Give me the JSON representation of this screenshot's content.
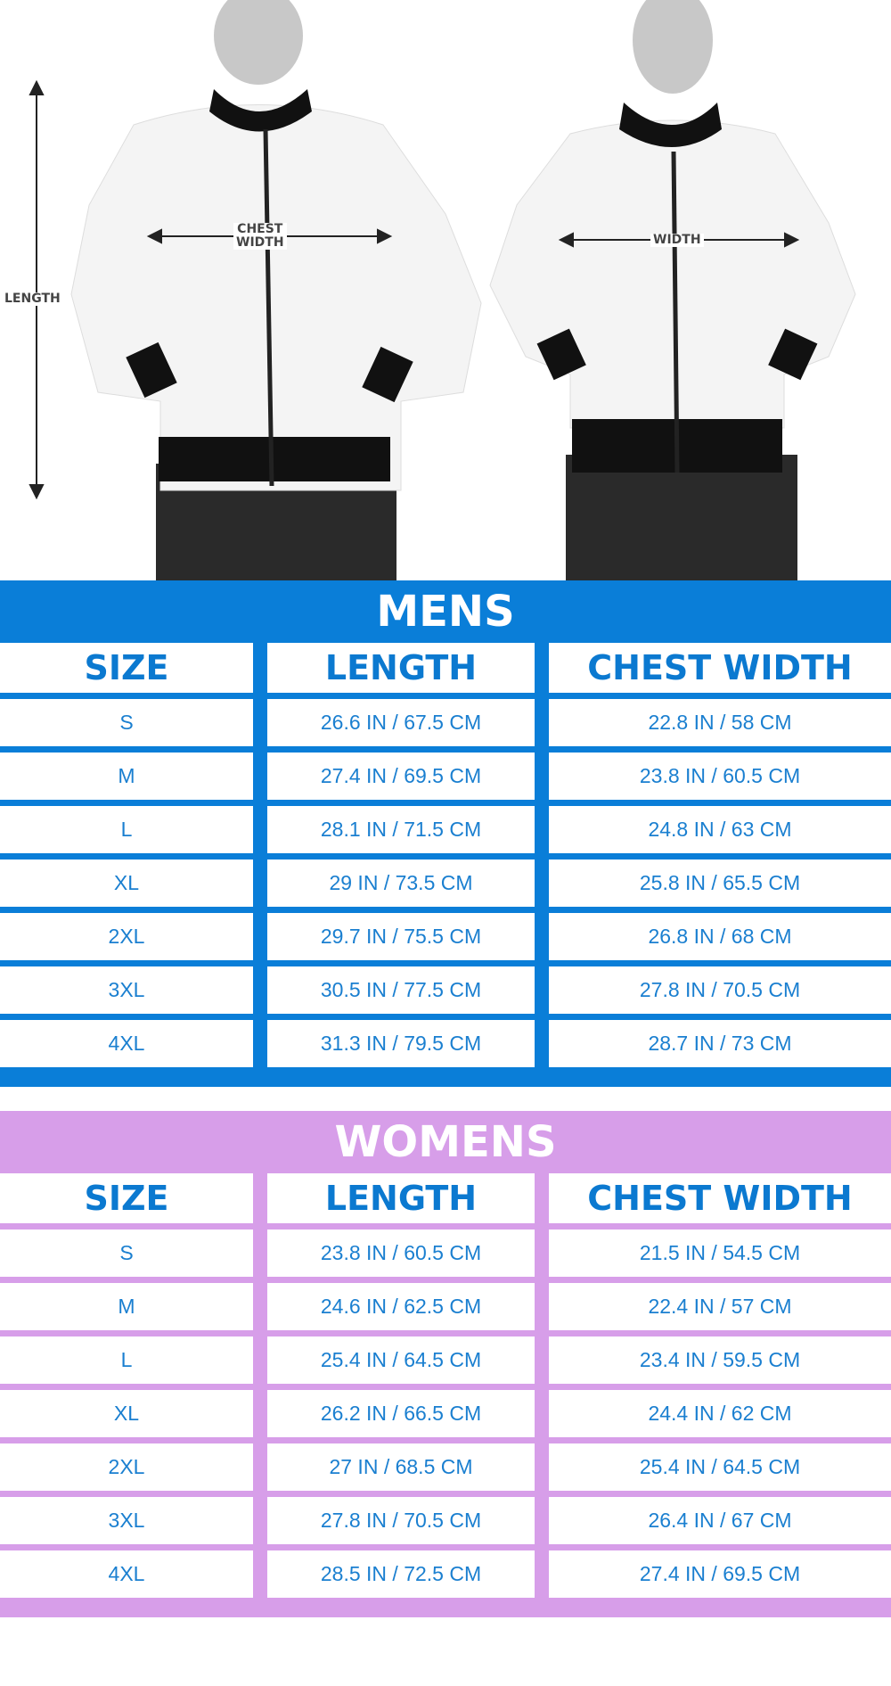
{
  "colors": {
    "mens": "#0a7ed8",
    "womens": "#d79ee9",
    "text": "#1a7fd0"
  },
  "photo": {
    "labels": {
      "length": "LENGTH",
      "chest_width": "CHEST\nWIDTH",
      "width": "WIDTH"
    }
  },
  "mens": {
    "title": "MENS",
    "headers": [
      "SIZE",
      "LENGTH",
      "CHEST WIDTH"
    ],
    "rows": [
      [
        "S",
        "26.6 IN / 67.5 CM",
        "22.8 IN / 58 CM"
      ],
      [
        "M",
        "27.4 IN / 69.5 CM",
        "23.8 IN / 60.5 CM"
      ],
      [
        "L",
        "28.1 IN / 71.5 CM",
        "24.8 IN / 63 CM"
      ],
      [
        "XL",
        "29 IN / 73.5 CM",
        "25.8 IN / 65.5 CM"
      ],
      [
        "2XL",
        "29.7 IN / 75.5 CM",
        "26.8 IN / 68 CM"
      ],
      [
        "3XL",
        "30.5 IN / 77.5 CM",
        "27.8 IN / 70.5 CM"
      ],
      [
        "4XL",
        "31.3 IN / 79.5 CM",
        "28.7 IN / 73 CM"
      ]
    ]
  },
  "womens": {
    "title": "WOMENS",
    "headers": [
      "SIZE",
      "LENGTH",
      "CHEST WIDTH"
    ],
    "rows": [
      [
        "S",
        "23.8 IN / 60.5 CM",
        "21.5 IN / 54.5 CM"
      ],
      [
        "M",
        "24.6 IN / 62.5 CM",
        "22.4 IN /  57 CM"
      ],
      [
        "L",
        "25.4 IN / 64.5 CM",
        "23.4 IN / 59.5 CM"
      ],
      [
        "XL",
        "26.2 IN / 66.5 CM",
        "24.4 IN / 62 CM"
      ],
      [
        "2XL",
        "27 IN / 68.5 CM",
        "25.4 IN / 64.5 CM"
      ],
      [
        "3XL",
        "27.8 IN / 70.5 CM",
        "26.4 IN / 67 CM"
      ],
      [
        "4XL",
        "28.5 IN / 72.5 CM",
        "27.4 IN / 69.5 CM"
      ]
    ]
  }
}
